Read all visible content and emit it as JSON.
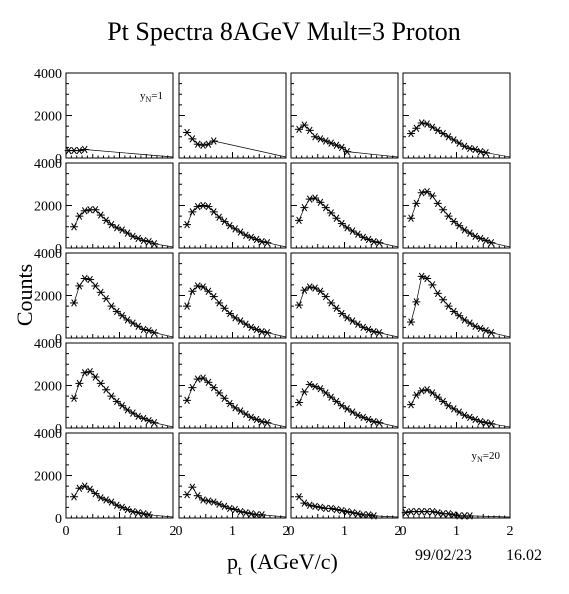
{
  "title": "Pt Spectra 8AGeV Mult=3 Proton",
  "xlabel": "p",
  "xlabel_sub": "t",
  "xlabel_units": "(AGeV/c)",
  "ylabel": "Counts",
  "footer_date": "99/02/23",
  "footer_time": "16.02",
  "panel_labels": [
    {
      "panel": 1,
      "symbol": "y",
      "sub": "N",
      "text": "=1"
    },
    {
      "panel": 20,
      "symbol": "y",
      "sub": "N",
      "text": "=20"
    }
  ],
  "x_ticks": [
    "0",
    "1",
    "2"
  ],
  "y_ticks": [
    "0",
    "2000",
    "4000"
  ],
  "colors": {
    "marker": "#000000",
    "frame": "#000000",
    "background": "#ffffff"
  },
  "chart_data": {
    "type": "scatter",
    "layout": "5 rows x 4 columns of panels, panels 1-20 read left-to-right, top-to-bottom",
    "xlim": [
      0,
      2
    ],
    "ylim": [
      0,
      4000
    ],
    "grid": false,
    "marker": "asterisk",
    "series": [
      {
        "x": [
          0.05,
          0.15,
          0.25,
          0.35
        ],
        "y": [
          350,
          350,
          350,
          400
        ]
      },
      {
        "x": [
          0.15,
          0.25,
          0.35,
          0.45,
          0.55,
          0.65
        ],
        "y": [
          1200,
          900,
          650,
          600,
          650,
          800
        ]
      },
      {
        "x": [
          0.15,
          0.25,
          0.35,
          0.45,
          0.55,
          0.65,
          0.75,
          0.85,
          0.95,
          1.05
        ],
        "y": [
          1350,
          1550,
          1300,
          1000,
          900,
          800,
          700,
          600,
          500,
          300
        ]
      },
      {
        "x": [
          0.15,
          0.25,
          0.35,
          0.45,
          0.55,
          0.65,
          0.75,
          0.85,
          0.95,
          1.05,
          1.15,
          1.25,
          1.35,
          1.45,
          1.55
        ],
        "y": [
          1150,
          1400,
          1650,
          1600,
          1450,
          1300,
          1150,
          1000,
          850,
          700,
          550,
          450,
          400,
          300,
          250
        ]
      },
      {
        "x": [
          0.15,
          0.25,
          0.35,
          0.45,
          0.55,
          0.65,
          0.75,
          0.85,
          0.95,
          1.05,
          1.15,
          1.25,
          1.35,
          1.45,
          1.55,
          1.65
        ],
        "y": [
          1000,
          1500,
          1750,
          1800,
          1800,
          1550,
          1300,
          1100,
          950,
          850,
          700,
          550,
          450,
          350,
          300,
          200
        ]
      },
      {
        "x": [
          0.15,
          0.25,
          0.35,
          0.45,
          0.55,
          0.65,
          0.75,
          0.85,
          0.95,
          1.05,
          1.15,
          1.25,
          1.35,
          1.45,
          1.55,
          1.65
        ],
        "y": [
          1100,
          1700,
          1950,
          2000,
          1950,
          1700,
          1450,
          1250,
          1050,
          900,
          750,
          600,
          500,
          400,
          300,
          250
        ]
      },
      {
        "x": [
          0.15,
          0.25,
          0.35,
          0.45,
          0.55,
          0.65,
          0.75,
          0.85,
          0.95,
          1.05,
          1.15,
          1.25,
          1.35,
          1.45,
          1.55,
          1.65
        ],
        "y": [
          1300,
          1900,
          2300,
          2350,
          2150,
          1900,
          1650,
          1400,
          1150,
          950,
          800,
          650,
          500,
          400,
          300,
          250
        ]
      },
      {
        "x": [
          0.15,
          0.25,
          0.35,
          0.45,
          0.55,
          0.65,
          0.75,
          0.85,
          0.95,
          1.05,
          1.15,
          1.25,
          1.35,
          1.45,
          1.55,
          1.65
        ],
        "y": [
          1400,
          2100,
          2600,
          2650,
          2450,
          2100,
          1800,
          1500,
          1250,
          1050,
          850,
          700,
          550,
          450,
          350,
          250
        ]
      },
      {
        "x": [
          0.15,
          0.25,
          0.35,
          0.45,
          0.55,
          0.65,
          0.75,
          0.85,
          0.95,
          1.05,
          1.15,
          1.25,
          1.35,
          1.45,
          1.55,
          1.65
        ],
        "y": [
          1650,
          2450,
          2800,
          2750,
          2450,
          2150,
          1850,
          1500,
          1250,
          1050,
          850,
          700,
          550,
          400,
          350,
          250
        ]
      },
      {
        "x": [
          0.15,
          0.25,
          0.35,
          0.45,
          0.55,
          0.65,
          0.75,
          0.85,
          0.95,
          1.05,
          1.15,
          1.25,
          1.35,
          1.45,
          1.55,
          1.65
        ],
        "y": [
          1500,
          2200,
          2450,
          2400,
          2200,
          1950,
          1650,
          1400,
          1150,
          950,
          800,
          650,
          500,
          400,
          300,
          250
        ]
      },
      {
        "x": [
          0.15,
          0.25,
          0.35,
          0.45,
          0.55,
          0.65,
          0.75,
          0.85,
          0.95,
          1.05,
          1.15,
          1.25,
          1.35,
          1.45,
          1.55,
          1.65
        ],
        "y": [
          1550,
          2250,
          2400,
          2350,
          2200,
          1950,
          1650,
          1400,
          1150,
          950,
          800,
          650,
          500,
          400,
          300,
          250
        ]
      },
      {
        "x": [
          0.15,
          0.25,
          0.35,
          0.45,
          0.55,
          0.65,
          0.75,
          0.85,
          0.95,
          1.05,
          1.15,
          1.25,
          1.35,
          1.45,
          1.55,
          1.65
        ],
        "y": [
          750,
          1700,
          2900,
          2800,
          2500,
          2100,
          1800,
          1500,
          1250,
          1050,
          850,
          700,
          550,
          450,
          350,
          250
        ]
      },
      {
        "x": [
          0.15,
          0.25,
          0.35,
          0.45,
          0.55,
          0.65,
          0.75,
          0.85,
          0.95,
          1.05,
          1.15,
          1.25,
          1.35,
          1.45,
          1.55,
          1.65
        ],
        "y": [
          1400,
          2100,
          2600,
          2650,
          2400,
          2100,
          1800,
          1500,
          1250,
          1050,
          850,
          700,
          550,
          450,
          350,
          250
        ]
      },
      {
        "x": [
          0.15,
          0.25,
          0.35,
          0.45,
          0.55,
          0.65,
          0.75,
          0.85,
          0.95,
          1.05,
          1.15,
          1.25,
          1.35,
          1.45,
          1.55,
          1.65
        ],
        "y": [
          1300,
          1900,
          2300,
          2350,
          2150,
          1900,
          1650,
          1400,
          1150,
          950,
          800,
          650,
          500,
          400,
          300,
          250
        ]
      },
      {
        "x": [
          0.15,
          0.25,
          0.35,
          0.45,
          0.55,
          0.65,
          0.75,
          0.85,
          0.95,
          1.05,
          1.15,
          1.25,
          1.35,
          1.45,
          1.55,
          1.65
        ],
        "y": [
          1200,
          1700,
          2050,
          1950,
          1850,
          1650,
          1450,
          1250,
          1050,
          900,
          750,
          600,
          500,
          400,
          300,
          250
        ]
      },
      {
        "x": [
          0.15,
          0.25,
          0.35,
          0.45,
          0.55,
          0.65,
          0.75,
          0.85,
          0.95,
          1.05,
          1.15,
          1.25,
          1.35,
          1.45,
          1.55,
          1.65
        ],
        "y": [
          1100,
          1550,
          1750,
          1800,
          1650,
          1450,
          1250,
          1050,
          900,
          750,
          600,
          500,
          400,
          300,
          250,
          200
        ]
      },
      {
        "x": [
          0.15,
          0.25,
          0.35,
          0.45,
          0.55,
          0.65,
          0.75,
          0.85,
          0.95,
          1.05,
          1.15,
          1.25,
          1.35,
          1.45,
          1.55
        ],
        "y": [
          1000,
          1400,
          1500,
          1350,
          1150,
          950,
          850,
          750,
          600,
          500,
          400,
          300,
          250,
          200,
          150
        ]
      },
      {
        "x": [
          0.15,
          0.25,
          0.35,
          0.45,
          0.55,
          0.65,
          0.75,
          0.85,
          0.95,
          1.05,
          1.15,
          1.25,
          1.35,
          1.45,
          1.55
        ],
        "y": [
          1100,
          1450,
          1050,
          850,
          800,
          750,
          650,
          550,
          450,
          400,
          300,
          250,
          200,
          150,
          150
        ]
      },
      {
        "x": [
          0.15,
          0.25,
          0.35,
          0.45,
          0.55,
          0.65,
          0.75,
          0.85,
          0.95,
          1.05,
          1.15,
          1.25,
          1.35,
          1.45,
          1.55
        ],
        "y": [
          1000,
          700,
          600,
          550,
          500,
          450,
          450,
          400,
          350,
          300,
          250,
          200,
          150,
          150,
          100
        ]
      },
      {
        "x": [
          0.05,
          0.15,
          0.25,
          0.35,
          0.45,
          0.55,
          0.65,
          0.75,
          0.85,
          0.95,
          1.05,
          1.15,
          1.25
        ],
        "y": [
          250,
          300,
          300,
          300,
          300,
          300,
          250,
          200,
          200,
          150,
          100,
          100,
          100
        ]
      }
    ]
  }
}
